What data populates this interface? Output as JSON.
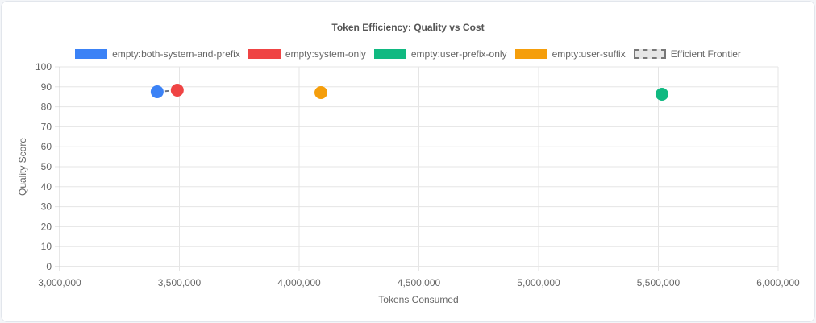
{
  "chart_data": {
    "type": "scatter",
    "title": "Token Efficiency: Quality vs Cost",
    "xlabel": "Tokens Consumed",
    "ylabel": "Quality Score",
    "xlim": [
      3000000,
      6000000
    ],
    "ylim": [
      0,
      100
    ],
    "x_ticks": [
      "3,000,000",
      "3,500,000",
      "4,000,000",
      "4,500,000",
      "5,000,000",
      "5,500,000",
      "6,000,000"
    ],
    "y_ticks": [
      "0",
      "10",
      "20",
      "30",
      "40",
      "50",
      "60",
      "70",
      "80",
      "90",
      "100"
    ],
    "grid": true,
    "legend_position": "top",
    "series": [
      {
        "name": "empty:both-system-and-prefix",
        "color": "#3b82f6",
        "points": [
          {
            "x": 3407000,
            "y": 87.5
          }
        ]
      },
      {
        "name": "empty:system-only",
        "color": "#ef4444",
        "points": [
          {
            "x": 3491000,
            "y": 88.3
          }
        ]
      },
      {
        "name": "empty:user-prefix-only",
        "color": "#10b981",
        "points": [
          {
            "x": 5515000,
            "y": 86.3
          }
        ]
      },
      {
        "name": "empty:user-suffix",
        "color": "#f59e0b",
        "points": [
          {
            "x": 4091000,
            "y": 87.1
          }
        ]
      },
      {
        "name": "Efficient Frontier",
        "color": "#6b7280",
        "style": "dashed-line",
        "points": [
          {
            "x": 3407000,
            "y": 87.5
          },
          {
            "x": 3491000,
            "y": 88.3
          }
        ]
      }
    ]
  },
  "legend": [
    {
      "label": "empty:both-system-and-prefix",
      "color": "#3b82f6"
    },
    {
      "label": "empty:system-only",
      "color": "#ef4444"
    },
    {
      "label": "empty:user-prefix-only",
      "color": "#10b981"
    },
    {
      "label": "empty:user-suffix",
      "color": "#f59e0b"
    },
    {
      "label": "Efficient Frontier",
      "color": "#e5e5e5"
    }
  ]
}
